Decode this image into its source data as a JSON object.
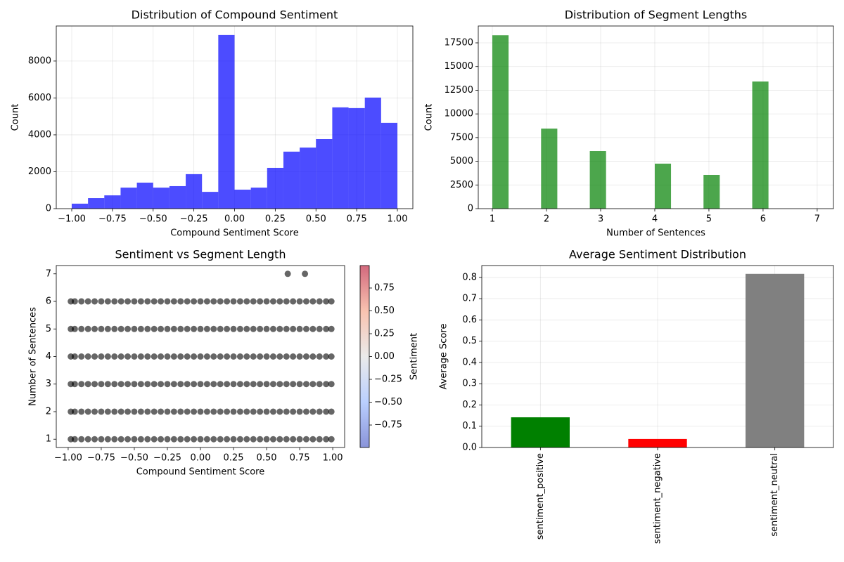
{
  "chart_data": [
    {
      "type": "histogram",
      "title": "Distribution of Compound Sentiment",
      "xlabel": "Compound Sentiment Score",
      "ylabel": "Count",
      "bins": [
        -1,
        -0.9,
        -0.8,
        -0.7,
        -0.6,
        -0.5,
        -0.4,
        -0.3,
        -0.2,
        -0.1,
        0,
        0.1,
        0.2,
        0.3,
        0.4,
        0.5,
        0.6,
        0.7,
        0.8,
        0.9,
        1
      ],
      "values": [
        270,
        570,
        720,
        1140,
        1410,
        1140,
        1220,
        1870,
        910,
        9410,
        1030,
        1140,
        2210,
        3090,
        3310,
        3770,
        5490,
        5450,
        6020,
        4650
      ],
      "color": "#0000ff",
      "alpha": 0.7,
      "grid": true,
      "xlim": [
        -1.095,
        1.095
      ],
      "ylim": [
        0,
        9900
      ],
      "xticks": [
        {
          "value": -1,
          "label": "−1.00"
        },
        {
          "value": -0.75,
          "label": "−0.75"
        },
        {
          "value": -0.5,
          "label": "−0.50"
        },
        {
          "value": -0.25,
          "label": "−0.25"
        },
        {
          "value": 0,
          "label": "0.00"
        },
        0.25,
        {
          "value": 0.5,
          "label": "0.50"
        },
        0.75,
        {
          "value": 1,
          "label": "1.00"
        }
      ],
      "yticks": [
        0,
        2000,
        4000,
        6000,
        8000
      ]
    },
    {
      "type": "histogram",
      "title": "Distribution of Segment Lengths",
      "xlabel": "Number of Sentences",
      "ylabel": "Count",
      "bins": [
        1,
        1.3,
        1.6,
        1.9,
        2.2,
        2.5,
        2.8,
        3.1,
        3.4,
        3.7,
        4.0,
        4.3,
        4.6,
        4.9,
        5.2,
        5.5,
        5.8,
        6.1,
        6.4,
        6.7,
        7
      ],
      "values": [
        18300,
        0,
        0,
        8450,
        0,
        0,
        6080,
        0,
        0,
        0,
        4750,
        0,
        0,
        3560,
        0,
        0,
        13420,
        0,
        0,
        2
      ],
      "color": "#008000",
      "alpha": 0.7,
      "grid": true,
      "xlim": [
        0.74,
        7.3
      ],
      "ylim": [
        0,
        19280
      ],
      "xticks": [
        1,
        2,
        3,
        4,
        5,
        6,
        7
      ],
      "yticks": [
        0,
        2500,
        5000,
        7500,
        10000,
        12500,
        15000,
        17500
      ]
    },
    {
      "type": "scatter",
      "title": "Sentiment vs Segment Length",
      "xlabel": "Compound Sentiment Score",
      "ylabel": "Number of Sentences",
      "colormap": "coolwarm",
      "alpha": 0.6,
      "grid": false,
      "x": [
        -0.98,
        -0.95,
        -0.9,
        -0.85,
        -0.8,
        -0.75,
        -0.7,
        -0.65,
        -0.6,
        -0.55,
        -0.5,
        -0.45,
        -0.4,
        -0.35,
        -0.3,
        -0.25,
        -0.2,
        -0.15,
        -0.1,
        -0.05,
        0,
        0.05,
        0.1,
        0.15,
        0.2,
        0.25,
        0.3,
        0.35,
        0.4,
        0.45,
        0.5,
        0.55,
        0.6,
        0.65,
        0.7,
        0.75,
        0.8,
        0.85,
        0.9,
        0.95,
        0.99,
        -0.98,
        -0.95,
        -0.9,
        -0.85,
        -0.8,
        -0.75,
        -0.7,
        -0.65,
        -0.6,
        -0.55,
        -0.5,
        -0.45,
        -0.4,
        -0.35,
        -0.3,
        -0.25,
        -0.2,
        -0.15,
        -0.1,
        -0.05,
        0,
        0.05,
        0.1,
        0.15,
        0.2,
        0.25,
        0.3,
        0.35,
        0.4,
        0.45,
        0.5,
        0.55,
        0.6,
        0.65,
        0.7,
        0.75,
        0.8,
        0.85,
        0.9,
        0.95,
        0.99,
        -0.98,
        -0.95,
        -0.9,
        -0.85,
        -0.8,
        -0.75,
        -0.7,
        -0.65,
        -0.6,
        -0.55,
        -0.5,
        -0.45,
        -0.4,
        -0.35,
        -0.3,
        -0.25,
        -0.2,
        -0.15,
        -0.1,
        -0.05,
        0,
        0.05,
        0.1,
        0.15,
        0.2,
        0.25,
        0.3,
        0.35,
        0.4,
        0.45,
        0.5,
        0.55,
        0.6,
        0.65,
        0.7,
        0.75,
        0.8,
        0.85,
        0.9,
        0.95,
        0.99,
        -0.98,
        -0.95,
        -0.9,
        -0.85,
        -0.8,
        -0.75,
        -0.7,
        -0.65,
        -0.6,
        -0.55,
        -0.5,
        -0.45,
        -0.4,
        -0.35,
        -0.3,
        -0.25,
        -0.2,
        -0.15,
        -0.1,
        -0.05,
        0,
        0.05,
        0.1,
        0.15,
        0.2,
        0.25,
        0.3,
        0.35,
        0.4,
        0.45,
        0.5,
        0.55,
        0.6,
        0.65,
        0.7,
        0.75,
        0.8,
        0.85,
        0.9,
        0.95,
        0.99,
        -0.98,
        -0.95,
        -0.9,
        -0.85,
        -0.8,
        -0.75,
        -0.7,
        -0.65,
        -0.6,
        -0.55,
        -0.5,
        -0.45,
        -0.4,
        -0.35,
        -0.3,
        -0.25,
        -0.2,
        -0.15,
        -0.1,
        -0.05,
        0,
        0.05,
        0.1,
        0.15,
        0.2,
        0.25,
        0.3,
        0.35,
        0.4,
        0.45,
        0.5,
        0.55,
        0.6,
        0.65,
        0.7,
        0.75,
        0.8,
        0.85,
        0.9,
        0.95,
        0.99,
        -0.98,
        -0.95,
        -0.9,
        -0.85,
        -0.8,
        -0.75,
        -0.7,
        -0.65,
        -0.6,
        -0.55,
        -0.5,
        -0.45,
        -0.4,
        -0.35,
        -0.3,
        -0.25,
        -0.2,
        -0.15,
        -0.1,
        -0.05,
        0,
        0.05,
        0.1,
        0.15,
        0.2,
        0.25,
        0.3,
        0.35,
        0.4,
        0.45,
        0.5,
        0.55,
        0.6,
        0.65,
        0.7,
        0.75,
        0.8,
        0.85,
        0.9,
        0.95,
        0.99,
        0.66,
        0.79
      ],
      "y": [
        1,
        1,
        1,
        1,
        1,
        1,
        1,
        1,
        1,
        1,
        1,
        1,
        1,
        1,
        1,
        1,
        1,
        1,
        1,
        1,
        1,
        1,
        1,
        1,
        1,
        1,
        1,
        1,
        1,
        1,
        1,
        1,
        1,
        1,
        1,
        1,
        1,
        1,
        1,
        1,
        1,
        2,
        2,
        2,
        2,
        2,
        2,
        2,
        2,
        2,
        2,
        2,
        2,
        2,
        2,
        2,
        2,
        2,
        2,
        2,
        2,
        2,
        2,
        2,
        2,
        2,
        2,
        2,
        2,
        2,
        2,
        2,
        2,
        2,
        2,
        2,
        2,
        2,
        2,
        2,
        2,
        2,
        3,
        3,
        3,
        3,
        3,
        3,
        3,
        3,
        3,
        3,
        3,
        3,
        3,
        3,
        3,
        3,
        3,
        3,
        3,
        3,
        3,
        3,
        3,
        3,
        3,
        3,
        3,
        3,
        3,
        3,
        3,
        3,
        3,
        3,
        3,
        3,
        3,
        3,
        3,
        3,
        3,
        4,
        4,
        4,
        4,
        4,
        4,
        4,
        4,
        4,
        4,
        4,
        4,
        4,
        4,
        4,
        4,
        4,
        4,
        4,
        4,
        4,
        4,
        4,
        4,
        4,
        4,
        4,
        4,
        4,
        4,
        4,
        4,
        4,
        4,
        4,
        4,
        4,
        4,
        4,
        4,
        4,
        5,
        5,
        5,
        5,
        5,
        5,
        5,
        5,
        5,
        5,
        5,
        5,
        5,
        5,
        5,
        5,
        5,
        5,
        5,
        5,
        5,
        5,
        5,
        5,
        5,
        5,
        5,
        5,
        5,
        5,
        5,
        5,
        5,
        5,
        5,
        5,
        5,
        5,
        5,
        5,
        5,
        6,
        6,
        6,
        6,
        6,
        6,
        6,
        6,
        6,
        6,
        6,
        6,
        6,
        6,
        6,
        6,
        6,
        6,
        6,
        6,
        6,
        6,
        6,
        6,
        6,
        6,
        6,
        6,
        6,
        6,
        6,
        6,
        6,
        6,
        6,
        6,
        6,
        6,
        6,
        6,
        6,
        7,
        7
      ],
      "xlim": [
        -1.09,
        1.09
      ],
      "ylim": [
        0.7,
        7.3
      ],
      "xticks": [
        {
          "value": -1,
          "label": "−1.00"
        },
        {
          "value": -0.75,
          "label": "−0.75"
        },
        {
          "value": -0.5,
          "label": "−0.50"
        },
        {
          "value": -0.25,
          "label": "−0.25"
        },
        {
          "value": 0,
          "label": "0.00"
        },
        0.25,
        {
          "value": 0.5,
          "label": "0.50"
        },
        0.75,
        {
          "value": 1,
          "label": "1.00"
        }
      ],
      "yticks": [
        1,
        2,
        3,
        4,
        5,
        6,
        7
      ],
      "colorbar": {
        "label": "Sentiment",
        "lim": [
          -0.996,
          0.996
        ],
        "ticks": [
          {
            "value": -0.75,
            "label": "−0.75"
          },
          {
            "value": -0.5,
            "label": "−0.50"
          },
          {
            "value": -0.25,
            "label": "−0.25"
          },
          {
            "value": 0,
            "label": "0.00"
          },
          0.25,
          {
            "value": 0.5,
            "label": "0.50"
          },
          0.75
        ]
      }
    },
    {
      "type": "bar",
      "title": "Average Sentiment Distribution",
      "ylabel": "Average Score",
      "categories": [
        "sentiment_positive",
        "sentiment_negative",
        "sentiment_neutral"
      ],
      "values": [
        0.142,
        0.04,
        0.817
      ],
      "colors": [
        "#008000",
        "#ff0000",
        "#808080"
      ],
      "grid": true,
      "ylim": [
        0,
        0.856
      ],
      "yticks": [
        {
          "value": 0,
          "label": "0.0"
        },
        0.1,
        0.2,
        0.3,
        0.4,
        0.5,
        0.6,
        0.7,
        0.8
      ]
    }
  ]
}
